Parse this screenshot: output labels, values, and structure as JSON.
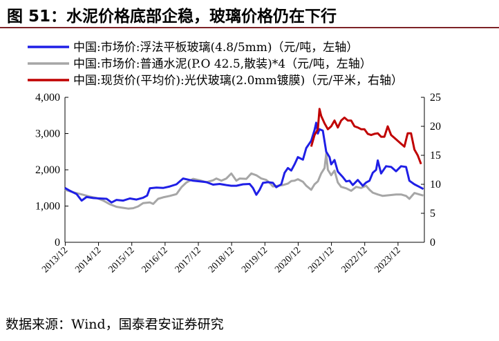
{
  "header": {
    "title": "图 51：水泥价格底部企稳，玻璃价格仍在下行"
  },
  "footer": {
    "source": "数据来源：Wind，国泰君安证券研究"
  },
  "chart_data": {
    "type": "line",
    "title": "",
    "y_left": {
      "ticks": [
        "0",
        "1,000",
        "2,000",
        "3,000",
        "4,000"
      ],
      "ylim": [
        0,
        4000
      ]
    },
    "y_right": {
      "ticks": [
        "0",
        "5",
        "10",
        "15",
        "20",
        "25"
      ],
      "ylim": [
        0,
        25
      ]
    },
    "x_ticks": [
      "2013/12",
      "2014/12",
      "2015/12",
      "2016/12",
      "2017/12",
      "2018/12",
      "2019/12",
      "2020/12",
      "2021/12",
      "2022/12",
      "2023/12"
    ],
    "xlim": [
      2013.95,
      2024.75
    ],
    "grid": false,
    "legend": "top",
    "series": [
      {
        "name": "中国:市场价:浮法平板玻璃(4.8/5mm)（元/吨，左轴）",
        "color": "#1f1fe6",
        "axis": "left",
        "points": [
          [
            2013.95,
            1500
          ],
          [
            2014.1,
            1420
          ],
          [
            2014.3,
            1330
          ],
          [
            2014.45,
            1150
          ],
          [
            2014.6,
            1250
          ],
          [
            2014.8,
            1220
          ],
          [
            2015.0,
            1210
          ],
          [
            2015.2,
            1200
          ],
          [
            2015.35,
            1100
          ],
          [
            2015.5,
            1170
          ],
          [
            2015.7,
            1150
          ],
          [
            2015.9,
            1210
          ],
          [
            2016.1,
            1180
          ],
          [
            2016.3,
            1230
          ],
          [
            2016.42,
            1290
          ],
          [
            2016.5,
            1490
          ],
          [
            2016.7,
            1510
          ],
          [
            2016.9,
            1500
          ],
          [
            2017.1,
            1540
          ],
          [
            2017.3,
            1600
          ],
          [
            2017.5,
            1760
          ],
          [
            2017.65,
            1730
          ],
          [
            2017.8,
            1700
          ],
          [
            2018.0,
            1680
          ],
          [
            2018.2,
            1660
          ],
          [
            2018.4,
            1590
          ],
          [
            2018.6,
            1610
          ],
          [
            2018.8,
            1580
          ],
          [
            2018.95,
            1560
          ],
          [
            2019.1,
            1560
          ],
          [
            2019.3,
            1600
          ],
          [
            2019.5,
            1610
          ],
          [
            2019.6,
            1500
          ],
          [
            2019.7,
            1310
          ],
          [
            2019.8,
            1450
          ],
          [
            2019.9,
            1640
          ],
          [
            2020.05,
            1660
          ],
          [
            2020.2,
            1640
          ],
          [
            2020.3,
            1520
          ],
          [
            2020.45,
            1600
          ],
          [
            2020.55,
            1920
          ],
          [
            2020.65,
            2050
          ],
          [
            2020.75,
            1980
          ],
          [
            2020.85,
            2150
          ],
          [
            2020.95,
            2350
          ],
          [
            2021.1,
            2280
          ],
          [
            2021.2,
            2600
          ],
          [
            2021.35,
            2800
          ],
          [
            2021.45,
            3100
          ],
          [
            2021.5,
            3300
          ],
          [
            2021.55,
            3000
          ],
          [
            2021.6,
            3120
          ],
          [
            2021.7,
            3080
          ],
          [
            2021.8,
            2500
          ],
          [
            2021.9,
            2350
          ],
          [
            2021.95,
            2150
          ],
          [
            2022.05,
            2270
          ],
          [
            2022.15,
            1950
          ],
          [
            2022.3,
            1800
          ],
          [
            2022.4,
            1680
          ],
          [
            2022.5,
            1700
          ],
          [
            2022.6,
            1580
          ],
          [
            2022.75,
            1720
          ],
          [
            2022.9,
            1560
          ],
          [
            2023.0,
            1650
          ],
          [
            2023.1,
            1700
          ],
          [
            2023.2,
            1920
          ],
          [
            2023.3,
            2000
          ],
          [
            2023.35,
            2260
          ],
          [
            2023.45,
            1900
          ],
          [
            2023.6,
            2100
          ],
          [
            2023.75,
            2080
          ],
          [
            2023.9,
            1960
          ],
          [
            2024.05,
            2100
          ],
          [
            2024.2,
            2080
          ],
          [
            2024.3,
            1700
          ],
          [
            2024.45,
            1600
          ],
          [
            2024.6,
            1530
          ],
          [
            2024.72,
            1470
          ]
        ]
      },
      {
        "name": "中国:市场价:普通水泥(P.O 42.5,散装)*4（元/吨，左轴）",
        "color": "#a6a6a6",
        "axis": "left",
        "points": [
          [
            2013.95,
            1450
          ],
          [
            2014.2,
            1380
          ],
          [
            2014.5,
            1310
          ],
          [
            2014.7,
            1260
          ],
          [
            2014.9,
            1220
          ],
          [
            2015.1,
            1150
          ],
          [
            2015.3,
            1050
          ],
          [
            2015.5,
            980
          ],
          [
            2015.7,
            950
          ],
          [
            2015.85,
            930
          ],
          [
            2016.0,
            940
          ],
          [
            2016.15,
            990
          ],
          [
            2016.3,
            1080
          ],
          [
            2016.5,
            1100
          ],
          [
            2016.6,
            1060
          ],
          [
            2016.75,
            1200
          ],
          [
            2016.9,
            1240
          ],
          [
            2017.1,
            1280
          ],
          [
            2017.3,
            1330
          ],
          [
            2017.45,
            1520
          ],
          [
            2017.6,
            1650
          ],
          [
            2017.8,
            1750
          ],
          [
            2018.0,
            1710
          ],
          [
            2018.2,
            1660
          ],
          [
            2018.4,
            1710
          ],
          [
            2018.5,
            1760
          ],
          [
            2018.65,
            1700
          ],
          [
            2018.8,
            1760
          ],
          [
            2018.95,
            1900
          ],
          [
            2019.1,
            1700
          ],
          [
            2019.2,
            1760
          ],
          [
            2019.4,
            1750
          ],
          [
            2019.55,
            1900
          ],
          [
            2019.7,
            1850
          ],
          [
            2019.85,
            1760
          ],
          [
            2020.0,
            1720
          ],
          [
            2020.1,
            1640
          ],
          [
            2020.2,
            1540
          ],
          [
            2020.35,
            1560
          ],
          [
            2020.5,
            1580
          ],
          [
            2020.65,
            1620
          ],
          [
            2020.75,
            1690
          ],
          [
            2020.85,
            1700
          ],
          [
            2020.95,
            1740
          ],
          [
            2021.1,
            1670
          ],
          [
            2021.2,
            1560
          ],
          [
            2021.35,
            1450
          ],
          [
            2021.45,
            1600
          ],
          [
            2021.55,
            1680
          ],
          [
            2021.65,
            1900
          ],
          [
            2021.75,
            2050
          ],
          [
            2021.8,
            2450
          ],
          [
            2021.85,
            2000
          ],
          [
            2021.95,
            1850
          ],
          [
            2022.05,
            1980
          ],
          [
            2022.15,
            1650
          ],
          [
            2022.25,
            1530
          ],
          [
            2022.4,
            1490
          ],
          [
            2022.55,
            1420
          ],
          [
            2022.7,
            1530
          ],
          [
            2022.85,
            1500
          ],
          [
            2023.0,
            1560
          ],
          [
            2023.1,
            1450
          ],
          [
            2023.2,
            1370
          ],
          [
            2023.35,
            1320
          ],
          [
            2023.5,
            1280
          ],
          [
            2023.7,
            1300
          ],
          [
            2023.9,
            1320
          ],
          [
            2024.05,
            1320
          ],
          [
            2024.2,
            1280
          ],
          [
            2024.3,
            1200
          ],
          [
            2024.45,
            1360
          ],
          [
            2024.6,
            1320
          ],
          [
            2024.72,
            1290
          ]
        ]
      },
      {
        "name": "中国:现货价(平均价):光伏玻璃(2.0mm镀膜)（元/平米，右轴）",
        "color": "#c00000",
        "axis": "right",
        "points": [
          [
            2021.35,
            16.5
          ],
          [
            2021.45,
            18.5
          ],
          [
            2021.55,
            19.5
          ],
          [
            2021.6,
            23
          ],
          [
            2021.65,
            21.8
          ],
          [
            2021.75,
            20.5
          ],
          [
            2021.85,
            19.5
          ],
          [
            2021.95,
            20
          ],
          [
            2022.05,
            21
          ],
          [
            2022.15,
            19.8
          ],
          [
            2022.25,
            21
          ],
          [
            2022.35,
            21.5
          ],
          [
            2022.45,
            21
          ],
          [
            2022.55,
            21
          ],
          [
            2022.65,
            20
          ],
          [
            2022.75,
            19.8
          ],
          [
            2022.85,
            19.5
          ],
          [
            2022.95,
            19.5
          ],
          [
            2023.05,
            18.7
          ],
          [
            2023.15,
            18.5
          ],
          [
            2023.25,
            18.7
          ],
          [
            2023.35,
            18.8
          ],
          [
            2023.45,
            18.2
          ],
          [
            2023.55,
            18.2
          ],
          [
            2023.65,
            20
          ],
          [
            2023.75,
            18.5
          ],
          [
            2023.85,
            18
          ],
          [
            2023.95,
            17.5
          ],
          [
            2024.05,
            17
          ],
          [
            2024.15,
            16.5
          ],
          [
            2024.25,
            18.8
          ],
          [
            2024.35,
            18.8
          ],
          [
            2024.45,
            16
          ],
          [
            2024.55,
            15
          ],
          [
            2024.65,
            13.5
          ]
        ]
      }
    ]
  }
}
